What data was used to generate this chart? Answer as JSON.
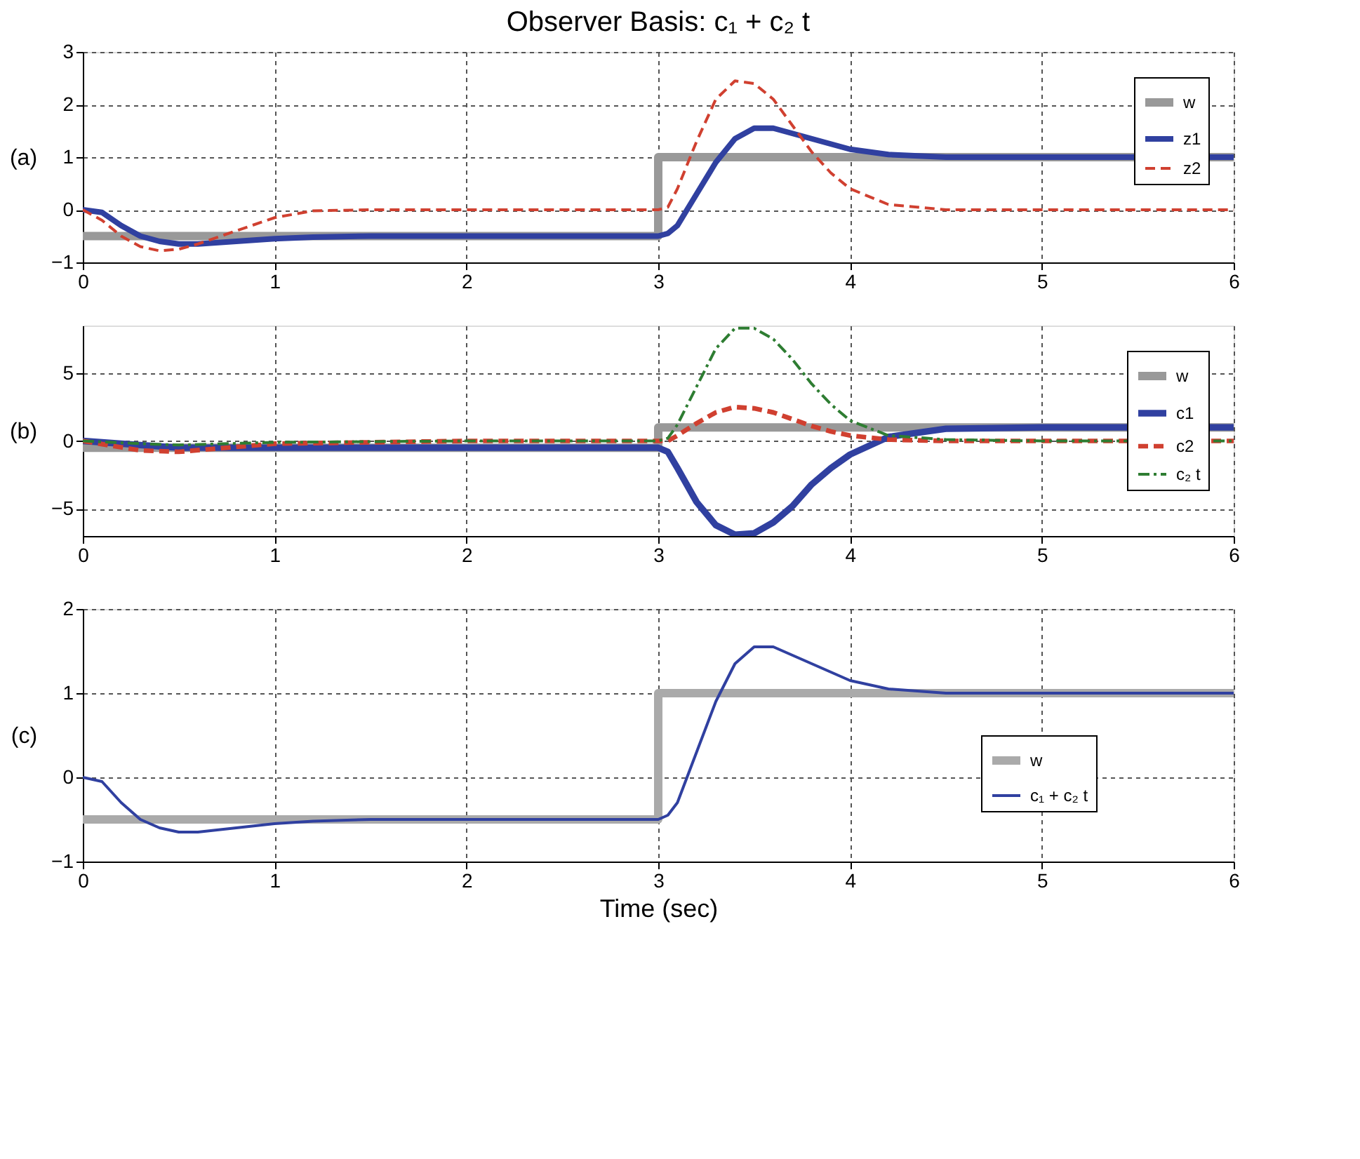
{
  "chart_data": [
    {
      "type": "line",
      "title": "Observer Basis:  c₁ + c₂ t",
      "ylabel": "(a)",
      "xlim": [
        0,
        6
      ],
      "xticks": [
        0,
        1,
        2,
        3,
        4,
        5,
        6
      ],
      "ylim": [
        -1,
        3
      ],
      "yticks": [
        -1,
        0,
        1,
        2,
        3
      ],
      "grid": true,
      "legend": "top right",
      "series": [
        {
          "name": "w",
          "type": "step",
          "color": "#999999",
          "line_style": "solid",
          "x": [
            0,
            3,
            6
          ],
          "values": [
            -0.5,
            1,
            1
          ]
        },
        {
          "name": "z1",
          "color": "#3040a0",
          "line_style": "solid",
          "x": [
            0,
            0.1,
            0.2,
            0.3,
            0.4,
            0.5,
            0.6,
            0.8,
            1,
            1.2,
            1.5,
            2,
            2.5,
            3,
            3.05,
            3.1,
            3.2,
            3.3,
            3.4,
            3.5,
            3.6,
            3.7,
            3.8,
            3.9,
            4,
            4.2,
            4.5,
            5,
            6
          ],
          "values": [
            0,
            -0.05,
            -0.3,
            -0.5,
            -0.6,
            -0.65,
            -0.65,
            -0.6,
            -0.55,
            -0.52,
            -0.5,
            -0.5,
            -0.5,
            -0.5,
            -0.45,
            -0.3,
            0.3,
            0.9,
            1.35,
            1.55,
            1.55,
            1.45,
            1.35,
            1.25,
            1.15,
            1.05,
            1.0,
            1.0,
            1.0
          ]
        },
        {
          "name": "z2",
          "color": "#d04030",
          "line_style": "dashed",
          "x": [
            0,
            0.1,
            0.2,
            0.3,
            0.4,
            0.5,
            0.6,
            0.8,
            1,
            1.2,
            1.5,
            2,
            2.5,
            3,
            3.05,
            3.1,
            3.2,
            3.3,
            3.4,
            3.5,
            3.6,
            3.7,
            3.8,
            3.9,
            4,
            4.2,
            4.5,
            5,
            6
          ],
          "values": [
            0,
            -0.2,
            -0.5,
            -0.7,
            -0.78,
            -0.75,
            -0.65,
            -0.4,
            -0.15,
            -0.02,
            0,
            0,
            0,
            0,
            0.05,
            0.4,
            1.3,
            2.1,
            2.45,
            2.4,
            2.1,
            1.6,
            1.1,
            0.7,
            0.4,
            0.1,
            0,
            0,
            0
          ]
        }
      ]
    },
    {
      "type": "line",
      "ylabel": "(b)",
      "xlim": [
        0,
        6
      ],
      "xticks": [
        0,
        1,
        2,
        3,
        4,
        5,
        6
      ],
      "ylim": [
        -7,
        8.5
      ],
      "yticks": [
        -5,
        0,
        5
      ],
      "grid": true,
      "legend": "top right",
      "series": [
        {
          "name": "w",
          "type": "step",
          "color": "#999999",
          "line_style": "solid",
          "x": [
            0,
            3,
            6
          ],
          "values": [
            -0.5,
            1,
            1
          ]
        },
        {
          "name": "c1",
          "color": "#3040a0",
          "line_style": "solid",
          "x": [
            0,
            0.3,
            0.5,
            1,
            2,
            3,
            3.05,
            3.1,
            3.2,
            3.3,
            3.4,
            3.5,
            3.6,
            3.7,
            3.8,
            3.9,
            4,
            4.2,
            4.5,
            5,
            6
          ],
          "values": [
            0,
            -0.3,
            -0.5,
            -0.5,
            -0.5,
            -0.5,
            -0.8,
            -2,
            -4.5,
            -6.2,
            -6.9,
            -6.8,
            -6,
            -4.8,
            -3.2,
            -2,
            -1,
            0.3,
            0.9,
            1,
            1
          ]
        },
        {
          "name": "c2",
          "color": "#d04030",
          "line_style": "dashed",
          "x": [
            0,
            0.3,
            0.5,
            1,
            2,
            3,
            3.05,
            3.1,
            3.2,
            3.3,
            3.4,
            3.5,
            3.6,
            3.7,
            3.8,
            3.9,
            4,
            4.2,
            4.5,
            5,
            6
          ],
          "values": [
            0,
            -0.7,
            -0.8,
            -0.2,
            0,
            0,
            0,
            0.4,
            1.3,
            2.1,
            2.5,
            2.4,
            2.1,
            1.6,
            1.1,
            0.7,
            0.4,
            0.1,
            0,
            0,
            0
          ]
        },
        {
          "name": "c₂ t",
          "color": "#2e7d32",
          "line_style": "dashdot",
          "x": [
            0,
            0.3,
            0.5,
            1,
            2,
            3,
            3.05,
            3.1,
            3.2,
            3.3,
            3.4,
            3.5,
            3.6,
            3.7,
            3.8,
            3.9,
            4,
            4.2,
            4.5,
            5,
            6
          ],
          "values": [
            0,
            -0.2,
            -0.3,
            -0.1,
            0,
            0,
            0.2,
            1.2,
            4,
            6.8,
            8.3,
            8.3,
            7.5,
            6,
            4.2,
            2.7,
            1.5,
            0.4,
            0.1,
            0,
            0
          ]
        }
      ]
    },
    {
      "type": "line",
      "ylabel": "(c)",
      "xlabel": "Time  (sec)",
      "xlim": [
        0,
        6
      ],
      "xticks": [
        0,
        1,
        2,
        3,
        4,
        5,
        6
      ],
      "ylim": [
        -1,
        2
      ],
      "yticks": [
        -1,
        0,
        1,
        2
      ],
      "grid": true,
      "legend": "right",
      "series": [
        {
          "name": "w",
          "type": "step",
          "color": "#aaaaaa",
          "line_style": "solid",
          "x": [
            0,
            3,
            6
          ],
          "values": [
            -0.5,
            1,
            1
          ]
        },
        {
          "name": "c₁ + c₂ t",
          "color": "#3040a0",
          "line_style": "solid",
          "x": [
            0,
            0.1,
            0.2,
            0.3,
            0.4,
            0.5,
            0.6,
            0.8,
            1,
            1.2,
            1.5,
            2,
            2.5,
            3,
            3.05,
            3.1,
            3.2,
            3.3,
            3.4,
            3.5,
            3.6,
            3.7,
            3.8,
            3.9,
            4,
            4.2,
            4.5,
            5,
            6
          ],
          "values": [
            0,
            -0.05,
            -0.3,
            -0.5,
            -0.6,
            -0.65,
            -0.65,
            -0.6,
            -0.55,
            -0.52,
            -0.5,
            -0.5,
            -0.5,
            -0.5,
            -0.45,
            -0.3,
            0.3,
            0.9,
            1.35,
            1.55,
            1.55,
            1.45,
            1.35,
            1.25,
            1.15,
            1.05,
            1.0,
            1.0,
            1.0
          ]
        }
      ]
    }
  ]
}
